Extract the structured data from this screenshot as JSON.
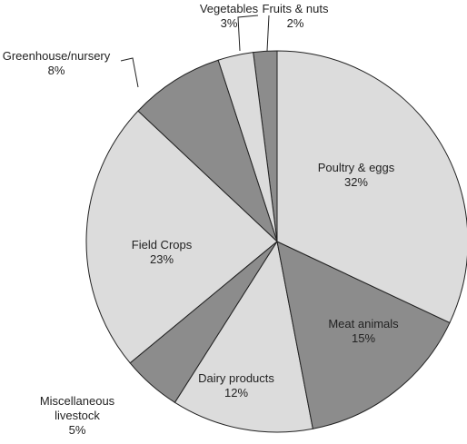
{
  "chart_data": {
    "type": "pie",
    "categories": [
      "Poultry & eggs",
      "Meat animals",
      "Dairy products",
      "Miscellaneous livestock",
      "Field Crops",
      "Greenhouse/nursery",
      "Vegetables",
      "Fruits & nuts"
    ],
    "values": [
      32,
      15,
      12,
      5,
      23,
      8,
      3,
      2
    ],
    "value_labels": [
      "32%",
      "15%",
      "12%",
      "5%",
      "23%",
      "8%",
      "3%",
      "2%"
    ],
    "colors": [
      "#dcdcdc",
      "#8c8c8c",
      "#dcdcdc",
      "#8c8c8c",
      "#dcdcdc",
      "#8c8c8c",
      "#dcdcdc",
      "#8c8c8c"
    ]
  }
}
